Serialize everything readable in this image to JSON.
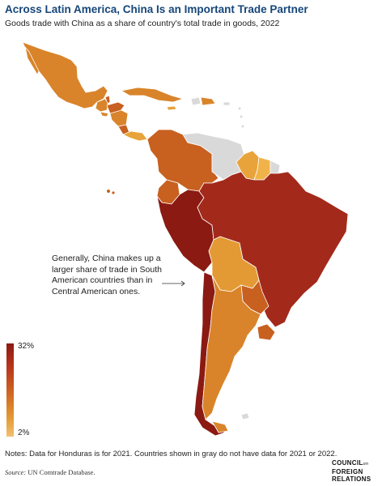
{
  "title": "Across Latin America, China Is an Important Trade Partner",
  "subtitle": "Goods trade with China as a share of country's total trade in goods, 2022",
  "annotation": "Generally, China makes up a larger share of trade in South American countries than in Central American ones.",
  "legend": {
    "max_label": "32%",
    "min_label": "2%"
  },
  "notes": "Notes: Data for Honduras is for 2021. Countries shown in gray do not have data for 2021 or 2022.",
  "source": {
    "label": "Source:",
    "text": "UN Comtrade Database."
  },
  "logo": {
    "line1": "COUNCIL",
    "on": "on",
    "line2": "FOREIGN",
    "line3": "RELATIONS"
  },
  "colors": {
    "dark_red": "#8b1a12",
    "red": "#a32a1b",
    "red_orange": "#b8351c",
    "dark_orange": "#c8601f",
    "orange": "#d9842a",
    "light_orange": "#e8a33a",
    "pale_orange": "#f0b34a",
    "no_data_gray": "#d9d9d9"
  }
}
